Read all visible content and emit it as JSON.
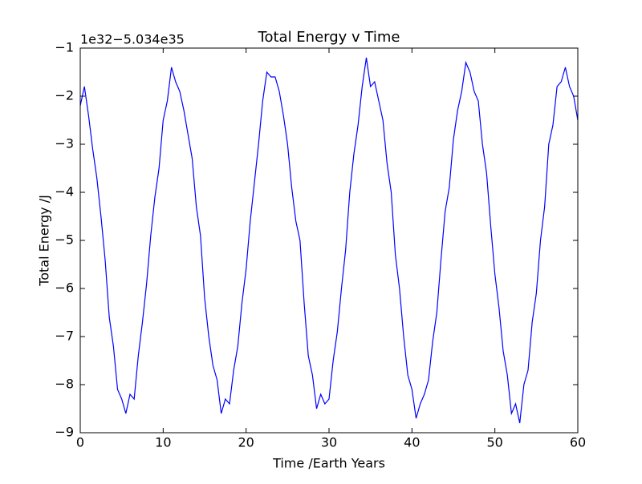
{
  "chart_data": {
    "type": "line",
    "title": "Total Energy v Time",
    "offset_text": "1e32−5.034e35",
    "x_label": "Time /Earth Years",
    "y_label": "Total Energy /J",
    "xlim": [
      0,
      60
    ],
    "ylim": [
      -9,
      -1
    ],
    "xticks": [
      0,
      10,
      20,
      30,
      40,
      50,
      60
    ],
    "yticks": [
      {
        "value": -9,
        "label": "−9"
      },
      {
        "value": -8,
        "label": "−8"
      },
      {
        "value": -7,
        "label": "−7"
      },
      {
        "value": -6,
        "label": "−6"
      },
      {
        "value": -5,
        "label": "−5"
      },
      {
        "value": -4,
        "label": "−4"
      },
      {
        "value": -3,
        "label": "−3"
      },
      {
        "value": -2,
        "label": "−2"
      },
      {
        "value": -1,
        "label": "−1"
      }
    ],
    "x": [
      0,
      0.5,
      1,
      1.5,
      2,
      2.5,
      3,
      3.5,
      4,
      4.5,
      5,
      5.5,
      6,
      6.5,
      7,
      7.5,
      8,
      8.5,
      9,
      9.5,
      10,
      10.5,
      11,
      11.5,
      12,
      12.5,
      13,
      13.5,
      14,
      14.5,
      15,
      15.5,
      16,
      16.5,
      17,
      17.5,
      18,
      18.5,
      19,
      19.5,
      20,
      20.5,
      21,
      21.5,
      22,
      22.5,
      23,
      23.5,
      24,
      24.5,
      25,
      25.5,
      26,
      26.5,
      27,
      27.5,
      28,
      28.5,
      29,
      29.5,
      30,
      30.5,
      31,
      31.5,
      32,
      32.5,
      33,
      33.5,
      34,
      34.5,
      35,
      35.5,
      36,
      36.5,
      37,
      37.5,
      38,
      38.5,
      39,
      39.5,
      40,
      40.5,
      41,
      41.5,
      42,
      42.5,
      43,
      43.5,
      44,
      44.5,
      45,
      45.5,
      46,
      46.5,
      47,
      47.5,
      48,
      48.5,
      49,
      49.5,
      50,
      50.5,
      51,
      51.5,
      52,
      52.5,
      53,
      53.5,
      54,
      54.5,
      55,
      55.5,
      56,
      56.5,
      57,
      57.5,
      58,
      58.5,
      59,
      59.5,
      60
    ],
    "series": [
      {
        "color": "#0000ff",
        "values": [
          -2.2,
          -1.8,
          -2.4,
          -3.1,
          -3.7,
          -4.5,
          -5.4,
          -6.6,
          -7.2,
          -8.1,
          -8.3,
          -8.6,
          -8.2,
          -8.3,
          -7.4,
          -6.7,
          -5.9,
          -4.9,
          -4.1,
          -3.5,
          -2.5,
          -2.1,
          -1.4,
          -1.7,
          -1.9,
          -2.3,
          -2.8,
          -3.3,
          -4.3,
          -4.9,
          -6.2,
          -7.0,
          -7.6,
          -7.9,
          -8.6,
          -8.3,
          -8.4,
          -7.7,
          -7.2,
          -6.3,
          -5.6,
          -4.6,
          -3.8,
          -3.0,
          -2.1,
          -1.5,
          -1.6,
          -1.6,
          -1.9,
          -2.4,
          -3.0,
          -3.9,
          -4.6,
          -5.0,
          -6.3,
          -7.4,
          -7.8,
          -8.5,
          -8.2,
          -8.4,
          -8.3,
          -7.5,
          -6.9,
          -6.0,
          -5.2,
          -4.0,
          -3.2,
          -2.6,
          -1.8,
          -1.2,
          -1.8,
          -1.7,
          -2.1,
          -2.5,
          -3.4,
          -4.0,
          -5.3,
          -6.0,
          -7.0,
          -7.8,
          -8.1,
          -8.7,
          -8.4,
          -8.2,
          -7.9,
          -7.1,
          -6.5,
          -5.4,
          -4.4,
          -3.9,
          -2.9,
          -2.3,
          -1.9,
          -1.3,
          -1.5,
          -1.9,
          -2.1,
          -3.0,
          -3.6,
          -4.7,
          -5.7,
          -6.4,
          -7.3,
          -7.8,
          -8.6,
          -8.4,
          -8.8,
          -8.0,
          -7.7,
          -6.7,
          -6.1,
          -5.0,
          -4.3,
          -3.0,
          -2.6,
          -1.8,
          -1.7,
          -1.4,
          -1.8,
          -2.0,
          -2.5
        ]
      }
    ]
  }
}
